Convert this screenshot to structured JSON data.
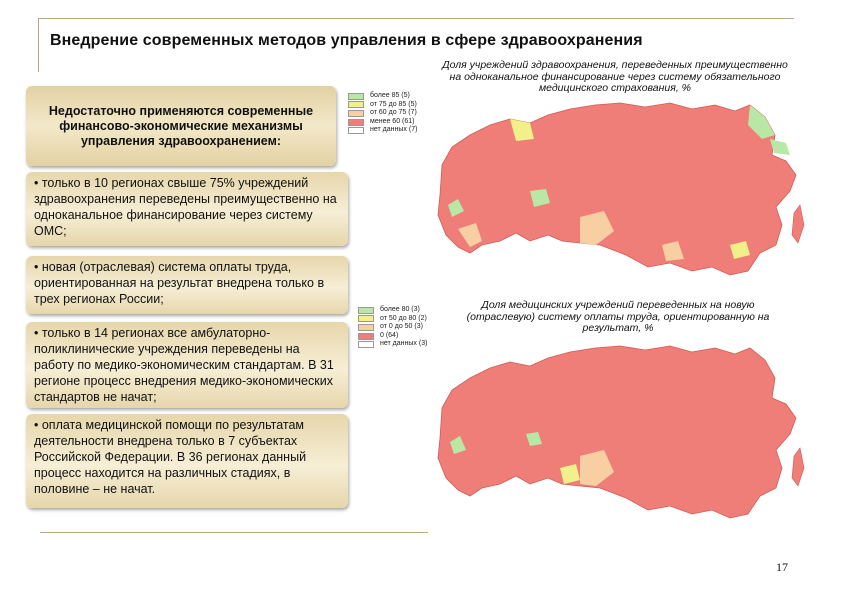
{
  "title": "Внедрение современных методов управления в сфере здравоохранения",
  "heading_box": "Недостаточно применяются современные финансово-экономические механизмы управления здравоохранением:",
  "bullets": [
    "• только в 10 регионах свыше 75% учреждений здравоохранения переведены преимущественно на одноканальное финансирование через систему ОМС;",
    "• новая (отраслевая) система оплаты труда, ориентированная на результат внедрена только в трех регионах России;",
    "• только в 14 регионах все амбулаторно-поликлинические учреждения переведены на работу по медико-экономическим стандартам. В 31 регионе процесс внедрения медико-экономических стандартов не начат;",
    "• оплата медицинской помощи по результатам деятельности внедрена только в 7 субъектах Российской Федерации. В 36 регионах данный процесс находится на различных стадиях, в половине – не начат."
  ],
  "map1": {
    "caption": "Доля учреждений здравоохранения, переведенных преимущественно на одноканальное финансирование через систему обязательного медицинского страхования, %",
    "legend": [
      {
        "label": "более 85 (5)",
        "color": "#b9e8a6"
      },
      {
        "label": "от 75 до 85 (5)",
        "color": "#f1f08a"
      },
      {
        "label": "от 60 до 75 (7)",
        "color": "#f7cfa3"
      },
      {
        "label": "менее 60 (61)",
        "color": "#ef7e78"
      },
      {
        "label": "нет данных (7)",
        "color": "#ffffff"
      }
    ]
  },
  "map2": {
    "caption": "Доля медицинских учреждений переведенных на новую (отраслевую) систему оплаты труда, ориентированную на результат, %",
    "legend": [
      {
        "label": "более 80 (3)",
        "color": "#b9e8a6"
      },
      {
        "label": "от 50 до 80 (2)",
        "color": "#f1f08a"
      },
      {
        "label": "от 0 до 50 (3)",
        "color": "#f7cfa3"
      },
      {
        "label": "0 (64)",
        "color": "#ef7e78"
      },
      {
        "label": "нет данных (3)",
        "color": "#ffffff"
      }
    ]
  },
  "page_number": "17"
}
